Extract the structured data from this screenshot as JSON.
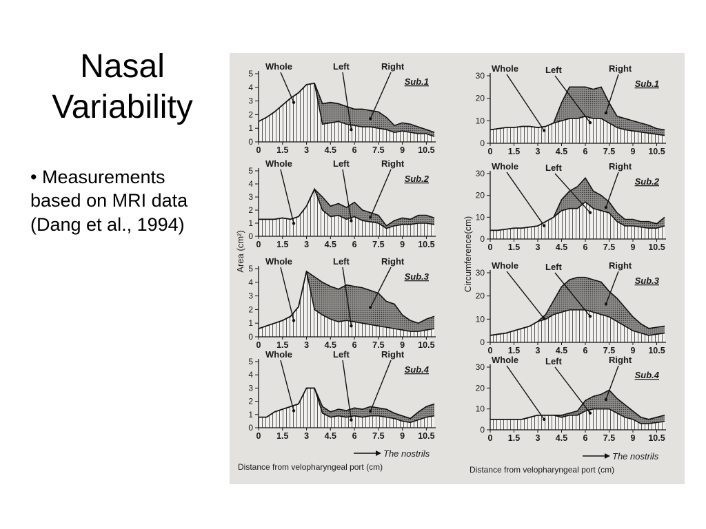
{
  "slide": {
    "title_line1": "Nasal",
    "title_line2": "Variability",
    "bullet_mark": "•",
    "bullet_text": "Measurements based on MRI data (Dang et al., 1994)"
  },
  "figure": {
    "left_ylabel": "Area (cm²)",
    "right_ylabel": "Circumference(cm)",
    "xlabel": "Distance from velopharyngeal port (cm)",
    "arrow_label": "The nostrils",
    "labels": {
      "whole": "Whole",
      "left": "Left",
      "right": "Right"
    }
  },
  "chart_data": [
    {
      "type": "area",
      "panel": "area",
      "title": "Sub.1",
      "x_ticks": [
        "0",
        "1.5",
        "3",
        "4.5",
        "6",
        "7.5",
        "9",
        "10.5"
      ],
      "y_ticks": [
        "0",
        "1",
        "2",
        "3",
        "4",
        "5"
      ],
      "xlim": [
        0,
        11
      ],
      "ylim": [
        0,
        5
      ],
      "x": [
        0,
        0.5,
        1,
        1.5,
        2,
        2.5,
        3,
        3.5,
        4,
        4.5,
        5,
        5.5,
        6,
        6.5,
        7,
        7.5,
        8,
        8.5,
        9,
        9.5,
        10,
        10.5,
        11
      ],
      "series": [
        {
          "name": "Whole",
          "values": [
            1.5,
            1.8,
            2.2,
            2.7,
            3.2,
            3.6,
            4.2,
            4.3,
            2.8,
            2.9,
            2.8,
            2.6,
            2.4,
            2.4,
            2.3,
            2.2,
            1.8,
            1.2,
            1.4,
            1.3,
            1.1,
            0.9,
            0.7
          ]
        },
        {
          "name": "Left",
          "values": [
            1.5,
            1.8,
            2.2,
            2.7,
            3.2,
            3.6,
            4.2,
            4.3,
            1.3,
            1.4,
            1.5,
            1.3,
            1.2,
            1.1,
            1.1,
            1.0,
            0.9,
            0.7,
            0.8,
            0.7,
            0.6,
            0.6,
            0.4
          ]
        }
      ]
    },
    {
      "type": "area",
      "panel": "circumference",
      "title": "Sub.1",
      "x_ticks": [
        "0",
        "1.5",
        "3",
        "4.5",
        "6",
        "7.5",
        "9",
        "10.5"
      ],
      "y_ticks": [
        "0",
        "10",
        "20",
        "30"
      ],
      "xlim": [
        0,
        11
      ],
      "ylim": [
        0,
        30
      ],
      "x": [
        0,
        0.5,
        1,
        1.5,
        2,
        2.5,
        3,
        3.5,
        4,
        4.5,
        5,
        5.5,
        6,
        6.5,
        7,
        7.5,
        8,
        8.5,
        9,
        9.5,
        10,
        10.5,
        11
      ],
      "series": [
        {
          "name": "Whole",
          "values": [
            6,
            6.5,
            7,
            7,
            7.5,
            7.5,
            7,
            7.5,
            9,
            18,
            25,
            25,
            25,
            24,
            25,
            18,
            12,
            11,
            10,
            9,
            8,
            6.5,
            6
          ]
        },
        {
          "name": "Left",
          "values": [
            6,
            6.5,
            7,
            7,
            7.5,
            7.5,
            7,
            7.5,
            9,
            10,
            11,
            11,
            12,
            11,
            11,
            9,
            7,
            6,
            5.5,
            5,
            4.5,
            4,
            3.5
          ]
        }
      ]
    },
    {
      "type": "area",
      "panel": "area",
      "title": "Sub.2",
      "x_ticks": [
        "0",
        "1.5",
        "3",
        "4.5",
        "6",
        "7.5",
        "9",
        "10.5"
      ],
      "y_ticks": [
        "0",
        "1",
        "2",
        "3",
        "4",
        "5"
      ],
      "xlim": [
        0,
        11
      ],
      "ylim": [
        0,
        5
      ],
      "x": [
        0,
        0.5,
        1,
        1.5,
        2,
        2.5,
        3,
        3.5,
        4,
        4.5,
        5,
        5.5,
        6,
        6.5,
        7,
        7.5,
        8,
        8.5,
        9,
        9.5,
        10,
        10.5,
        11
      ],
      "series": [
        {
          "name": "Whole",
          "values": [
            1.3,
            1.3,
            1.3,
            1.4,
            1.3,
            1.5,
            2.3,
            3.6,
            3.0,
            2.3,
            2.5,
            2.2,
            2.6,
            2.0,
            1.8,
            1.6,
            0.8,
            1.2,
            1.4,
            1.3,
            1.6,
            1.6,
            1.4
          ]
        },
        {
          "name": "Left",
          "values": [
            1.3,
            1.3,
            1.3,
            1.4,
            1.3,
            1.5,
            2.3,
            3.6,
            2.0,
            1.5,
            1.6,
            1.3,
            1.5,
            1.2,
            1.1,
            1.0,
            0.6,
            0.8,
            0.9,
            0.9,
            1.0,
            1.0,
            0.9
          ]
        }
      ]
    },
    {
      "type": "area",
      "panel": "circumference",
      "title": "Sub.2",
      "x_ticks": [
        "0",
        "1.5",
        "3",
        "4.5",
        "6",
        "7.5",
        "9",
        "10.5"
      ],
      "y_ticks": [
        "0",
        "10",
        "20",
        "30"
      ],
      "xlim": [
        0,
        11
      ],
      "ylim": [
        0,
        30
      ],
      "x": [
        0,
        0.5,
        1,
        1.5,
        2,
        2.5,
        3,
        3.5,
        4,
        4.5,
        5,
        5.5,
        6,
        6.5,
        7,
        7.5,
        8,
        8.5,
        9,
        9.5,
        10,
        10.5,
        11
      ],
      "series": [
        {
          "name": "Whole",
          "values": [
            4,
            4,
            4.5,
            5,
            5,
            5.5,
            6,
            8,
            10,
            18,
            22,
            24,
            28,
            22,
            20,
            17,
            12,
            9,
            9,
            8,
            8,
            7,
            10
          ]
        },
        {
          "name": "Left",
          "values": [
            4,
            4,
            4.5,
            5,
            5,
            5.5,
            6,
            8,
            10,
            13,
            14,
            14,
            17,
            14,
            13,
            12,
            8,
            6,
            6,
            5.5,
            5,
            5,
            6
          ]
        }
      ]
    },
    {
      "type": "area",
      "panel": "area",
      "title": "Sub.3",
      "x_ticks": [
        "0",
        "1.5",
        "3",
        "4.5",
        "6",
        "7.5",
        "9",
        "10.5"
      ],
      "y_ticks": [
        "0",
        "1",
        "2",
        "3",
        "4",
        "5"
      ],
      "xlim": [
        0,
        11
      ],
      "ylim": [
        0,
        5
      ],
      "x": [
        0,
        0.5,
        1,
        1.5,
        2,
        2.5,
        3,
        3.5,
        4,
        4.5,
        5,
        5.5,
        6,
        6.5,
        7,
        7.5,
        8,
        8.5,
        9,
        9.5,
        10,
        10.5,
        11
      ],
      "series": [
        {
          "name": "Whole",
          "values": [
            0.6,
            0.8,
            1.0,
            1.2,
            1.5,
            2.2,
            4.8,
            4.4,
            4.0,
            3.7,
            3.5,
            3.8,
            3.7,
            3.6,
            3.4,
            3.2,
            2.6,
            2.4,
            1.6,
            1.2,
            1.0,
            1.3,
            1.5
          ]
        },
        {
          "name": "Left",
          "values": [
            0.6,
            0.8,
            1.0,
            1.2,
            1.5,
            2.2,
            4.8,
            2.0,
            1.6,
            1.3,
            1.1,
            1.2,
            1.1,
            1.0,
            0.9,
            0.8,
            0.7,
            0.6,
            0.5,
            0.4,
            0.4,
            0.5,
            0.6
          ]
        }
      ]
    },
    {
      "type": "area",
      "panel": "circumference",
      "title": "Sub.3",
      "x_ticks": [
        "0",
        "1.5",
        "3",
        "4.5",
        "6",
        "7.5",
        "9",
        "10.5"
      ],
      "y_ticks": [
        "0",
        "10",
        "20",
        "30"
      ],
      "xlim": [
        0,
        11
      ],
      "ylim": [
        0,
        30
      ],
      "x": [
        0,
        0.5,
        1,
        1.5,
        2,
        2.5,
        3,
        3.5,
        4,
        4.5,
        5,
        5.5,
        6,
        6.5,
        7,
        7.5,
        8,
        8.5,
        9,
        9.5,
        10,
        10.5,
        11
      ],
      "series": [
        {
          "name": "Whole",
          "values": [
            3,
            3.5,
            4,
            5,
            6,
            7,
            9,
            12,
            18,
            24,
            27,
            28,
            28,
            27,
            26,
            22,
            19,
            15,
            11,
            8,
            6,
            6.5,
            7
          ]
        },
        {
          "name": "Left",
          "values": [
            3,
            3.5,
            4,
            5,
            6,
            7,
            9,
            10,
            12,
            13,
            14,
            14,
            14,
            13,
            12,
            11,
            9,
            7,
            5,
            4,
            3,
            3.5,
            4
          ]
        }
      ]
    },
    {
      "type": "area",
      "panel": "area",
      "title": "Sub.4",
      "x_ticks": [
        "0",
        "1.5",
        "3",
        "4.5",
        "6",
        "7.5",
        "9",
        "10.5"
      ],
      "y_ticks": [
        "0",
        "1",
        "2",
        "3",
        "4",
        "5"
      ],
      "xlim": [
        0,
        11
      ],
      "ylim": [
        0,
        5
      ],
      "x": [
        0,
        0.5,
        1,
        1.5,
        2,
        2.5,
        3,
        3.5,
        4,
        4.5,
        5,
        5.5,
        6,
        6.5,
        7,
        7.5,
        8,
        8.5,
        9,
        9.5,
        10,
        10.5,
        11
      ],
      "series": [
        {
          "name": "Whole",
          "values": [
            0.8,
            0.8,
            1.2,
            1.4,
            1.6,
            1.8,
            3.0,
            3.0,
            1.6,
            1.2,
            1.4,
            1.3,
            1.5,
            1.4,
            1.6,
            1.5,
            1.4,
            1.1,
            0.9,
            0.7,
            1.2,
            1.6,
            1.8
          ]
        },
        {
          "name": "Left",
          "values": [
            0.8,
            0.8,
            1.2,
            1.4,
            1.6,
            1.8,
            3.0,
            3.0,
            1.1,
            0.8,
            0.9,
            0.8,
            0.9,
            0.8,
            0.9,
            0.9,
            0.8,
            0.7,
            0.5,
            0.4,
            0.6,
            0.8,
            0.9
          ]
        }
      ]
    },
    {
      "type": "area",
      "panel": "circumference",
      "title": "Sub.4",
      "x_ticks": [
        "0",
        "1.5",
        "3",
        "4.5",
        "6",
        "7.5",
        "9",
        "10.5"
      ],
      "y_ticks": [
        "0",
        "10",
        "20",
        "30"
      ],
      "xlim": [
        0,
        11
      ],
      "ylim": [
        0,
        30
      ],
      "x": [
        0,
        0.5,
        1,
        1.5,
        2,
        2.5,
        3,
        3.5,
        4,
        4.5,
        5,
        5.5,
        6,
        6.5,
        7,
        7.5,
        8,
        8.5,
        9,
        9.5,
        10,
        10.5,
        11
      ],
      "series": [
        {
          "name": "Whole",
          "values": [
            5,
            5,
            5,
            5,
            5,
            6,
            7,
            7,
            7,
            7,
            8,
            9,
            14,
            16,
            17,
            19,
            15,
            12,
            9,
            6,
            5,
            6,
            7
          ]
        },
        {
          "name": "Left",
          "values": [
            5,
            5,
            5,
            5,
            5,
            6,
            7,
            7,
            7,
            6,
            7,
            7,
            9,
            10,
            10,
            10,
            8,
            6,
            5,
            3,
            3,
            3.5,
            4
          ]
        }
      ]
    }
  ]
}
